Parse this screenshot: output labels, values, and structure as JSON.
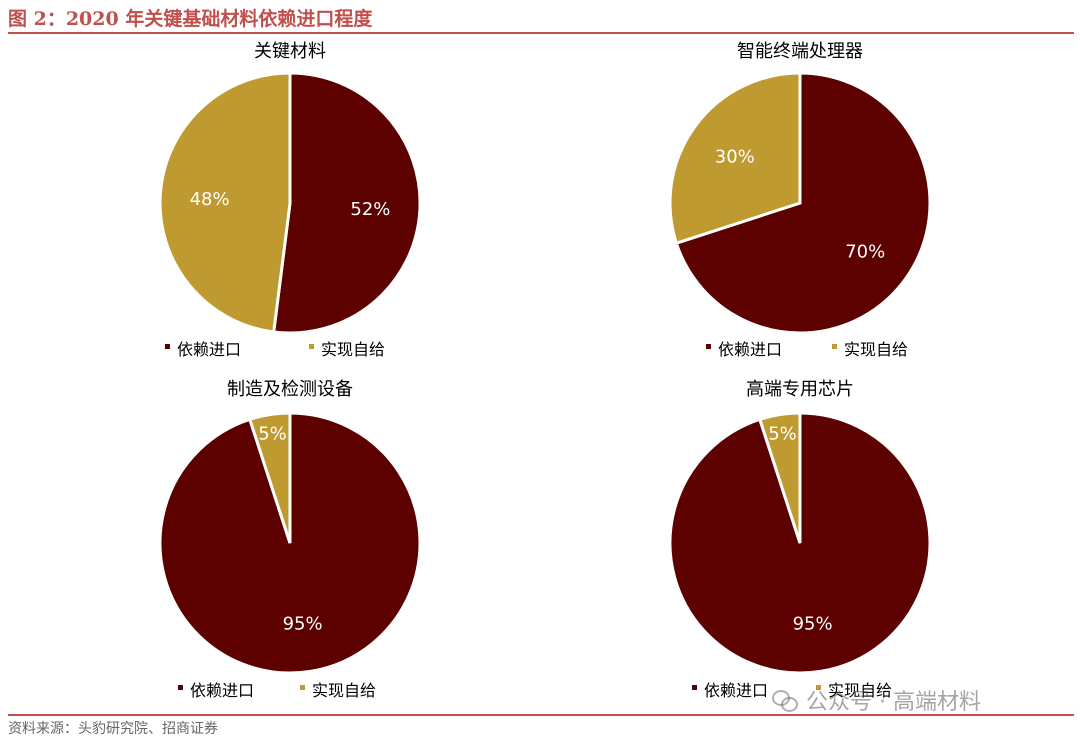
{
  "figure": {
    "title": "图 2：2020 年关键基础材料依赖进口程度",
    "source": "资料来源：头豹研究院、招商证券",
    "watermark": "公众号 · 高端材料"
  },
  "colors": {
    "import": "#5c0000",
    "self": "#bf9a30",
    "accent": "#c0504d"
  },
  "chart_data": [
    {
      "type": "pie",
      "title": "关键材料",
      "legend": [
        "依赖进口",
        "实现自给"
      ],
      "legend_position": "bottom",
      "slices": [
        {
          "label": "依赖进口",
          "value": 52,
          "display": "52%"
        },
        {
          "label": "实现自给",
          "value": 48,
          "display": "48%"
        }
      ]
    },
    {
      "type": "pie",
      "title": "智能终端处理器",
      "legend": [
        "依赖进口",
        "实现自给"
      ],
      "legend_position": "bottom",
      "slices": [
        {
          "label": "依赖进口",
          "value": 70,
          "display": "70%"
        },
        {
          "label": "实现自给",
          "value": 30,
          "display": "30%"
        }
      ]
    },
    {
      "type": "pie",
      "title": "制造及检测设备",
      "legend": [
        "依赖进口",
        "实现自给"
      ],
      "legend_position": "bottom",
      "slices": [
        {
          "label": "依赖进口",
          "value": 95,
          "display": "95%"
        },
        {
          "label": "实现自给",
          "value": 5,
          "display": "5%"
        }
      ]
    },
    {
      "type": "pie",
      "title": "高端专用芯片",
      "legend": [
        "依赖进口",
        "实现自给"
      ],
      "legend_position": "bottom",
      "slices": [
        {
          "label": "依赖进口",
          "value": 95,
          "display": "95%"
        },
        {
          "label": "实现自给",
          "value": 5,
          "display": "5%"
        }
      ]
    }
  ]
}
